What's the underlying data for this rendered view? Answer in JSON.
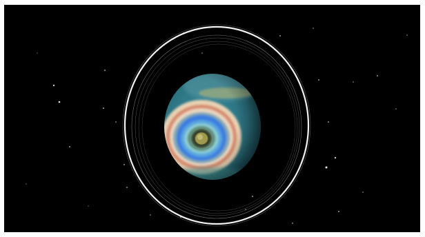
{
  "scene": {
    "subject": "planet-with-rings",
    "background_color": "#000000",
    "frame_color": "#ffffff",
    "ring_color": "#ffffff",
    "planet_band_colors": [
      "#2c7f8e",
      "#e9c6a8",
      "#d98a6b",
      "#3f7fe0",
      "#6bb7c9",
      "#2e5c4a",
      "#9b8a4a"
    ]
  }
}
